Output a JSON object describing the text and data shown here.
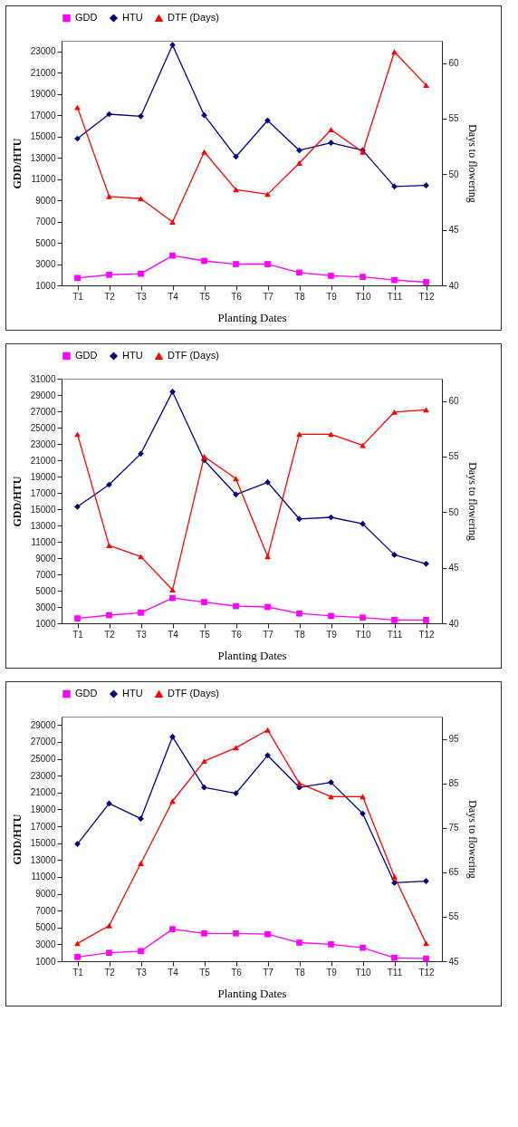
{
  "chart_data": [
    {
      "type": "line",
      "xlabel": "Planting Dates",
      "ylabel": "GDD/HTU",
      "y2label": "Days to flowering",
      "categories": [
        "T1",
        "T2",
        "T3",
        "T4",
        "T5",
        "T6",
        "T7",
        "T8",
        "T9",
        "T10",
        "T11",
        "T12"
      ],
      "ylim": [
        1000,
        24000
      ],
      "yticks": [
        1000,
        3000,
        5000,
        7000,
        9000,
        11000,
        13000,
        15000,
        17000,
        19000,
        21000,
        23000
      ],
      "y2lim": [
        40,
        62
      ],
      "y2ticks": [
        40,
        45,
        50,
        55,
        60
      ],
      "legend": "top",
      "grid": false,
      "line_style": "solid",
      "series": [
        {
          "name": "GDD",
          "color": "#ff00ff",
          "marker": "square",
          "values": [
            1700,
            2000,
            2100,
            3800,
            3300,
            3000,
            3000,
            2200,
            1900,
            1800,
            1500,
            1300
          ]
        },
        {
          "name": "HTU",
          "color": "#000080",
          "marker": "diamond",
          "values": [
            14800,
            17100,
            16900,
            23600,
            17000,
            13100,
            16500,
            13700,
            14400,
            13700,
            10300,
            10400
          ]
        },
        {
          "name": "DTF (Days)",
          "color": "#ff0000",
          "marker": "triangle",
          "axis": "y2",
          "values": [
            56,
            48,
            47.8,
            45.7,
            52,
            48.6,
            48.2,
            51,
            54,
            52,
            61,
            58
          ]
        }
      ]
    },
    {
      "type": "line",
      "xlabel": "Planting Dates",
      "ylabel": "GDD/HTU",
      "y2label": "Days to flowering",
      "categories": [
        "T1",
        "T2",
        "T3",
        "T4",
        "T5",
        "T6",
        "T7",
        "T8",
        "T9",
        "T10",
        "T11",
        "T12"
      ],
      "ylim": [
        1000,
        31000
      ],
      "yticks": [
        1000,
        3000,
        5000,
        7000,
        9000,
        11000,
        13000,
        15000,
        17000,
        19000,
        21000,
        23000,
        25000,
        27000,
        29000,
        31000
      ],
      "y2lim": [
        40,
        62
      ],
      "y2ticks": [
        40,
        45,
        50,
        55,
        60
      ],
      "legend": "top",
      "grid": false,
      "line_style": "solid",
      "series": [
        {
          "name": "GDD",
          "color": "#ff00ff",
          "marker": "square",
          "values": [
            1600,
            2000,
            2300,
            4100,
            3600,
            3100,
            3000,
            2200,
            1900,
            1700,
            1400,
            1400
          ]
        },
        {
          "name": "HTU",
          "color": "#000080",
          "marker": "diamond",
          "values": [
            15300,
            18000,
            21800,
            29400,
            21000,
            16800,
            18300,
            13800,
            14000,
            13200,
            9400,
            8300
          ]
        },
        {
          "name": "DTF (Days)",
          "color": "#ff0000",
          "marker": "triangle",
          "axis": "y2",
          "values": [
            57,
            47,
            46,
            43,
            55,
            53,
            46,
            57,
            57,
            56,
            59,
            59.2
          ]
        }
      ]
    },
    {
      "type": "line",
      "xlabel": "Planting Dates",
      "ylabel": "GDD/HTU",
      "y2label": "Days to flowering",
      "categories": [
        "T1",
        "T2",
        "T3",
        "T4",
        "T5",
        "T6",
        "T7",
        "T8",
        "T9",
        "T10",
        "T11",
        "T12"
      ],
      "ylim": [
        1000,
        30000
      ],
      "yticks": [
        1000,
        3000,
        5000,
        7000,
        9000,
        11000,
        13000,
        15000,
        17000,
        19000,
        21000,
        23000,
        25000,
        27000,
        29000
      ],
      "y2lim": [
        45,
        100
      ],
      "y2ticks": [
        45,
        55,
        65,
        75,
        85,
        95
      ],
      "legend": "top",
      "grid": false,
      "line_style": "solid",
      "series": [
        {
          "name": "GDD",
          "color": "#ff00ff",
          "marker": "square",
          "values": [
            1500,
            2000,
            2200,
            4800,
            4300,
            4300,
            4200,
            3200,
            3000,
            2600,
            1400,
            1300
          ]
        },
        {
          "name": "HTU",
          "color": "#000080",
          "marker": "diamond",
          "values": [
            14900,
            19700,
            17900,
            27600,
            21600,
            20900,
            25400,
            21600,
            22200,
            18500,
            10300,
            10500
          ]
        },
        {
          "name": "DTF (Days)",
          "color": "#ff0000",
          "marker": "triangle",
          "axis": "y2",
          "values": [
            49,
            53,
            67,
            81,
            90,
            93,
            97,
            85,
            82,
            82,
            64,
            49
          ]
        }
      ]
    }
  ]
}
